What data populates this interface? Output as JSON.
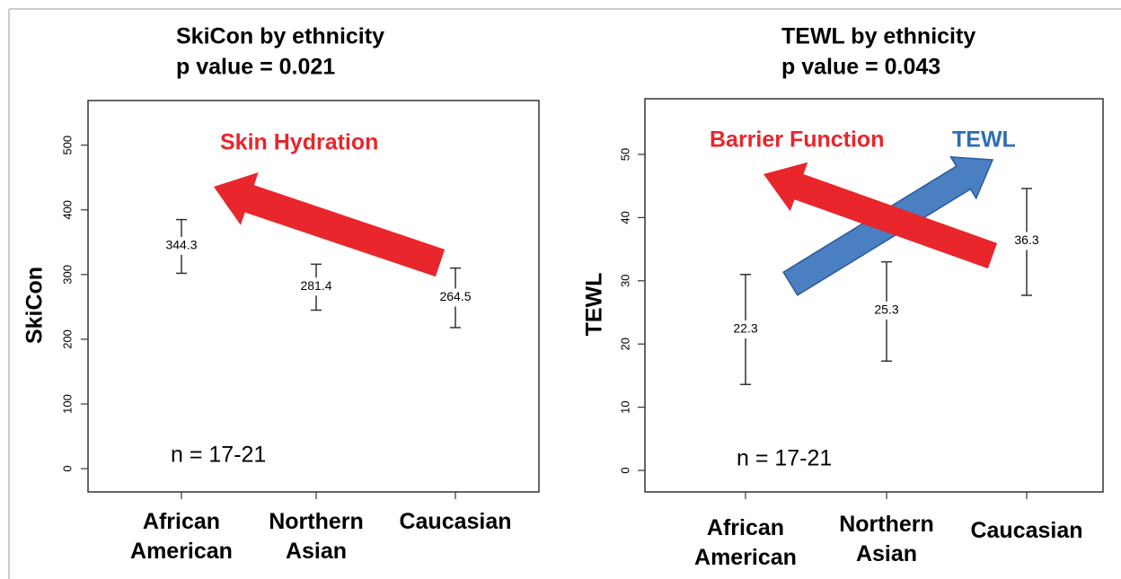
{
  "chart_data": [
    {
      "type": "errorbar",
      "title": "SkiCon by ethnicity",
      "subtitle": "p value = 0.021",
      "y_label": "SkiCon",
      "categories": [
        "African American",
        "Northern Asian",
        "Caucasian"
      ],
      "values": [
        344.3,
        281.4,
        264.5
      ],
      "lower": [
        302,
        245,
        218
      ],
      "upper": [
        385,
        316,
        310
      ],
      "ylim": [
        -36,
        569
      ],
      "yticks": [
        0,
        100,
        200,
        300,
        400,
        500
      ],
      "annotations": [
        {
          "text": "Skin Hydration",
          "color": "#e8262b"
        },
        {
          "text": "n = 17-21",
          "color": "#000000"
        }
      ]
    },
    {
      "type": "errorbar",
      "title": "TEWL by ethnicity",
      "subtitle": "p value = 0.043",
      "y_label": "TEWL",
      "categories": [
        "African American",
        "Northern Asian",
        "Caucasian"
      ],
      "values": [
        22.3,
        25.3,
        36.3
      ],
      "lower": [
        13.6,
        17.3,
        27.7
      ],
      "upper": [
        31,
        33,
        44.6
      ],
      "ylim": [
        -3.4,
        58.8
      ],
      "yticks": [
        0,
        10,
        20,
        30,
        40,
        50
      ],
      "annotations": [
        {
          "text": "Barrier Function",
          "color": "#e8262b"
        },
        {
          "text": "TEWL",
          "color": "#2e6db4"
        },
        {
          "text": "n = 17-21",
          "color": "#000000"
        }
      ]
    }
  ]
}
